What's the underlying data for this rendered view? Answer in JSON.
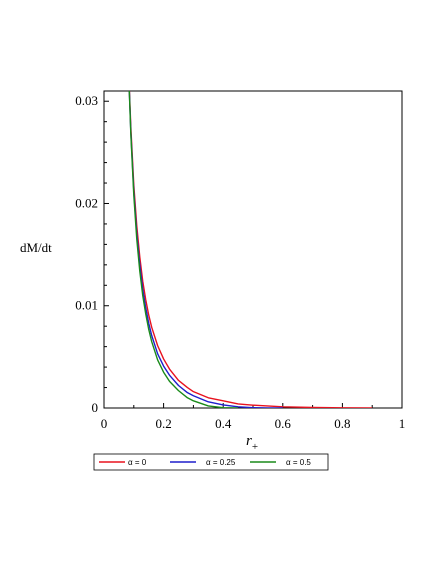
{
  "chart_data": {
    "type": "line",
    "xlabel": "r+",
    "ylabel": "dM/dt",
    "xlim": [
      0,
      1
    ],
    "ylim": [
      0,
      0.031
    ],
    "x_ticks": [
      "0",
      "0.2",
      "0.4",
      "0.6",
      "0.8",
      "1"
    ],
    "y_ticks": [
      "0",
      "0.01",
      "0.02",
      "0.03"
    ],
    "grid": false,
    "legend_position": "bottom",
    "series": [
      {
        "name": "α = 0",
        "color": "#e8121f",
        "x": [
          0.08,
          0.09,
          0.1,
          0.11,
          0.12,
          0.13,
          0.14,
          0.15,
          0.16,
          0.18,
          0.2,
          0.22,
          0.25,
          0.28,
          0.3,
          0.35,
          0.4,
          0.45,
          0.5,
          0.6,
          0.7,
          0.8,
          0.9
        ],
        "y": [
          0.035,
          0.0275,
          0.0218,
          0.0178,
          0.0148,
          0.0124,
          0.0106,
          0.0091,
          0.0079,
          0.0061,
          0.0048,
          0.0038,
          0.0027,
          0.002,
          0.0016,
          0.001,
          0.0007,
          0.0004,
          0.00028,
          0.00012,
          5e-05,
          2e-05,
          0.0
        ]
      },
      {
        "name": "α = 0.25",
        "color": "#1f1fcc",
        "x": [
          0.08,
          0.09,
          0.1,
          0.11,
          0.12,
          0.13,
          0.14,
          0.15,
          0.16,
          0.18,
          0.2,
          0.22,
          0.25,
          0.28,
          0.3,
          0.35,
          0.4,
          0.45,
          0.5,
          0.55,
          0.6
        ],
        "y": [
          0.035,
          0.027,
          0.0212,
          0.017,
          0.014,
          0.0116,
          0.0098,
          0.0083,
          0.0071,
          0.0053,
          0.0041,
          0.0032,
          0.0022,
          0.0015,
          0.0012,
          0.0006,
          0.0003,
          0.00012,
          3e-05,
          0.0,
          0.0
        ]
      },
      {
        "name": "α = 0.5",
        "color": "#1a8a1a",
        "x": [
          0.08,
          0.09,
          0.1,
          0.11,
          0.12,
          0.13,
          0.14,
          0.15,
          0.16,
          0.18,
          0.2,
          0.22,
          0.25,
          0.28,
          0.3,
          0.35,
          0.4,
          0.45
        ],
        "y": [
          0.035,
          0.0268,
          0.0208,
          0.0165,
          0.0134,
          0.011,
          0.0092,
          0.0077,
          0.0065,
          0.0047,
          0.0035,
          0.0026,
          0.0017,
          0.001,
          0.0007,
          0.0002,
          3e-05,
          0.0
        ]
      }
    ]
  }
}
